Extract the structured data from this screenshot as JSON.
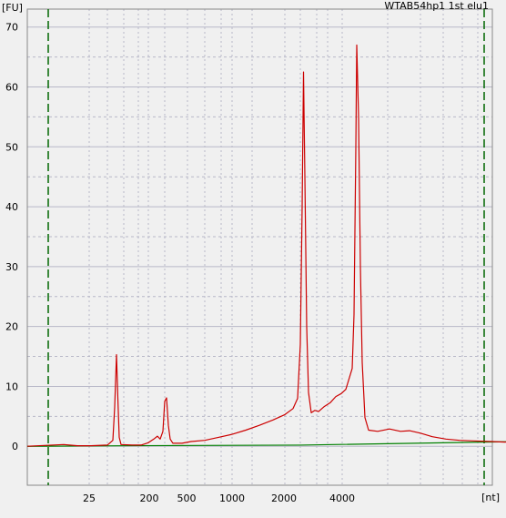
{
  "chart_data": {
    "type": "line",
    "title": "WTAB54hp1 1st elu1",
    "ylabel": "[FU]",
    "xlabel": "[nt]",
    "ylim": [
      -6.5,
      73
    ],
    "yticks": [
      0,
      10,
      20,
      30,
      40,
      50,
      60,
      70
    ],
    "xticks": [
      "25",
      "200",
      "500",
      "1000",
      "2000",
      "4000"
    ],
    "grid": true,
    "colors": {
      "background": "#f0f0f0",
      "grid": "#b8b8c8",
      "trace": "#cc0000",
      "baseline": "#008000",
      "markers": "#006600"
    },
    "series": [
      {
        "x_scale": "time-index",
        "points": [
          [
            0,
            0
          ],
          [
            40,
            0.3
          ],
          [
            55,
            0.1
          ],
          [
            70,
            0.1
          ],
          [
            88,
            0.2
          ],
          [
            94,
            1.0
          ],
          [
            96,
            6.5
          ],
          [
            98,
            15.3
          ],
          [
            99.5,
            8.0
          ],
          [
            101,
            1.5
          ],
          [
            103,
            0.3
          ],
          [
            115,
            0.2
          ],
          [
            125,
            0.2
          ],
          [
            133,
            0.6
          ],
          [
            139,
            1.2
          ],
          [
            143,
            1.7
          ],
          [
            146,
            1.2
          ],
          [
            149,
            2.5
          ],
          [
            151,
            7.5
          ],
          [
            153,
            8.1
          ],
          [
            155,
            3.5
          ],
          [
            157,
            1.2
          ],
          [
            160,
            0.5
          ],
          [
            170,
            0.5
          ],
          [
            180,
            0.8
          ],
          [
            195,
            1.0
          ],
          [
            210,
            1.5
          ],
          [
            225,
            2.0
          ],
          [
            240,
            2.7
          ],
          [
            255,
            3.5
          ],
          [
            270,
            4.4
          ],
          [
            283,
            5.3
          ],
          [
            292,
            6.3
          ],
          [
            297,
            8.0
          ],
          [
            300,
            17.0
          ],
          [
            302,
            40.0
          ],
          [
            303.5,
            62.5
          ],
          [
            305,
            45.0
          ],
          [
            307,
            20.0
          ],
          [
            309,
            9.0
          ],
          [
            312,
            5.6
          ],
          [
            316,
            6.0
          ],
          [
            320,
            5.8
          ],
          [
            326,
            6.6
          ],
          [
            333,
            7.3
          ],
          [
            339,
            8.3
          ],
          [
            345,
            8.8
          ],
          [
            350,
            9.5
          ],
          [
            354,
            11.5
          ],
          [
            357,
            13.0
          ],
          [
            359,
            22.0
          ],
          [
            361,
            50.0
          ],
          [
            362,
            67.0
          ],
          [
            364,
            55.0
          ],
          [
            366,
            30.0
          ],
          [
            368,
            14.0
          ],
          [
            371,
            4.8
          ],
          [
            375,
            2.7
          ],
          [
            385,
            2.5
          ],
          [
            398,
            2.9
          ],
          [
            410,
            2.5
          ],
          [
            420,
            2.6
          ],
          [
            432,
            2.2
          ],
          [
            445,
            1.6
          ],
          [
            460,
            1.2
          ],
          [
            475,
            1.0
          ],
          [
            490,
            0.9
          ],
          [
            510,
            0.8
          ],
          [
            525,
            0.7
          ],
          [
            541,
            0.8
          ]
        ]
      }
    ]
  }
}
